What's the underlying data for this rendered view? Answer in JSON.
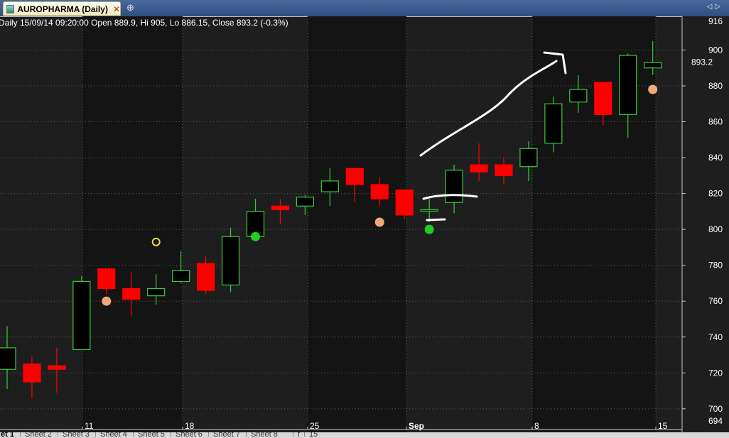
{
  "window": {
    "tab_title": "AUROPHARMA (Daily)",
    "close_icon": "close-icon",
    "pin_icon": "pin-icon",
    "nav_left": "◁",
    "nav_right": "▷"
  },
  "colors": {
    "background": "#1e1e1e",
    "shade_band": "#141414",
    "up_candle_border": "#3cc83c",
    "down_candle": "#ff0000",
    "grid": "#5a5a5a",
    "axis_text": "#ffffff",
    "signal_down": "#f0a878",
    "signal_up": "#22cc22",
    "marker_ring": "#e8e040",
    "annotation": "#ffffff"
  },
  "chart_data": {
    "type": "candlestick",
    "title": "Daily 15/09/14 09:20:00 Open 889.9, Hi 905, Lo 886.15, Close 893.2 (-0.3%)",
    "ylim": [
      694,
      916
    ],
    "y_ticks": [
      700,
      720,
      740,
      760,
      780,
      800,
      820,
      840,
      860,
      880,
      900
    ],
    "y_top_label": "916",
    "y_bottom_label": "694",
    "last_price_label": "893.2",
    "grid": true,
    "x_labels": [
      "11",
      "18",
      "25",
      "Sep",
      "8",
      "15"
    ],
    "candles": [
      {
        "open": 722,
        "high": 746,
        "low": 711,
        "close": 734
      },
      {
        "open": 725,
        "high": 729,
        "low": 706,
        "close": 715
      },
      {
        "open": 724,
        "high": 734,
        "low": 709,
        "close": 722
      },
      {
        "open": 733,
        "high": 774,
        "low": 733,
        "close": 771
      },
      {
        "open": 778,
        "high": 778,
        "low": 764,
        "close": 767
      },
      {
        "open": 767,
        "high": 776,
        "low": 752,
        "close": 761
      },
      {
        "open": 763,
        "high": 775,
        "low": 758,
        "close": 767
      },
      {
        "open": 771,
        "high": 788,
        "low": 770,
        "close": 777
      },
      {
        "open": 781,
        "high": 785,
        "low": 764,
        "close": 766
      },
      {
        "open": 769,
        "high": 801,
        "low": 765,
        "close": 796
      },
      {
        "open": 796,
        "high": 817,
        "low": 796,
        "close": 810
      },
      {
        "open": 813,
        "high": 817,
        "low": 803,
        "close": 811
      },
      {
        "open": 813,
        "high": 819,
        "low": 808,
        "close": 818
      },
      {
        "open": 821,
        "high": 834,
        "low": 813,
        "close": 827
      },
      {
        "open": 834,
        "high": 834,
        "low": 815,
        "close": 825
      },
      {
        "open": 825,
        "high": 829,
        "low": 813,
        "close": 817
      },
      {
        "open": 822,
        "high": 822,
        "low": 806,
        "close": 808
      },
      {
        "open": 811,
        "high": 817,
        "low": 804,
        "close": 811
      },
      {
        "open": 815,
        "high": 836,
        "low": 809,
        "close": 833
      },
      {
        "open": 836,
        "high": 848,
        "low": 827,
        "close": 832
      },
      {
        "open": 836,
        "high": 840,
        "low": 825,
        "close": 830
      },
      {
        "open": 835,
        "high": 849,
        "low": 827,
        "close": 845
      },
      {
        "open": 848,
        "high": 874,
        "low": 843,
        "close": 870
      },
      {
        "open": 871,
        "high": 886,
        "low": 865,
        "close": 878
      },
      {
        "open": 882,
        "high": 882,
        "low": 858,
        "close": 864
      },
      {
        "open": 864,
        "high": 898,
        "low": 851,
        "close": 897
      },
      {
        "open": 890,
        "high": 905,
        "low": 886,
        "close": 893
      }
    ],
    "signals": [
      {
        "candle": 4,
        "label": "4",
        "kind": "down",
        "price": 760
      },
      {
        "candle": 10,
        "label": "7",
        "kind": "up",
        "price": 796
      },
      {
        "candle": 15,
        "label": "4",
        "kind": "down",
        "price": 804
      },
      {
        "candle": 17,
        "label": "7",
        "kind": "up",
        "price": 800
      },
      {
        "candle": 26,
        "label": "4",
        "kind": "down",
        "price": 878
      }
    ],
    "ring_marker": {
      "candle": 6,
      "price": 793
    }
  },
  "sheet_tabs": [
    "et 1",
    "Sheet 2",
    "Sheet 3",
    "Sheet 4",
    "Sheet 5",
    "Sheet 6",
    "Sheet 7",
    "Sheet 8"
  ],
  "sheet_nav": [
    "f",
    "15"
  ]
}
